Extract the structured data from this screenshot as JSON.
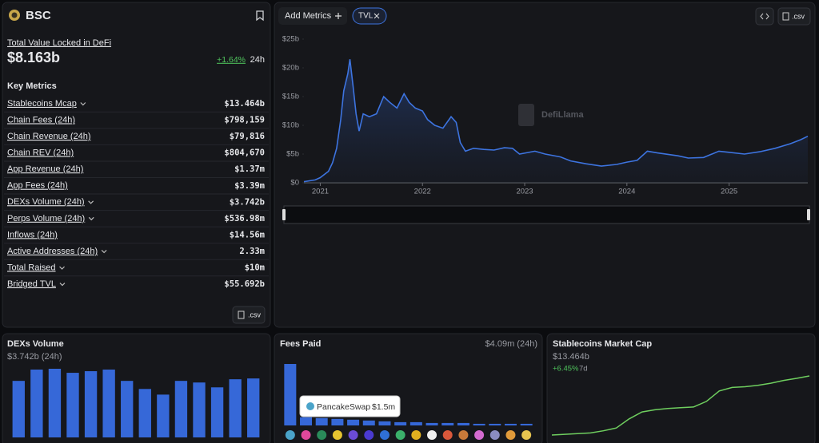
{
  "header": {
    "title": "BSC"
  },
  "tvl": {
    "label": "Total Value Locked in DeFi",
    "value": "$8.163b",
    "change": "+1.64%",
    "period": "24h"
  },
  "key_metrics": {
    "title": "Key Metrics",
    "csv": ".csv",
    "rows": [
      {
        "label": "Stablecoins Mcap",
        "value": "$13.464b",
        "dropdown": true
      },
      {
        "label": "Chain Fees (24h)",
        "value": "$798,159",
        "dropdown": false
      },
      {
        "label": "Chain Revenue (24h)",
        "value": "$79,816",
        "dropdown": false
      },
      {
        "label": "Chain REV (24h)",
        "value": "$804,670",
        "dropdown": false
      },
      {
        "label": "App Revenue (24h)",
        "value": "$1.37m",
        "dropdown": false
      },
      {
        "label": "App Fees (24h)",
        "value": "$3.39m",
        "dropdown": false
      },
      {
        "label": "DEXs Volume (24h)",
        "value": "$3.742b",
        "dropdown": true
      },
      {
        "label": "Perps Volume (24h)",
        "value": "$536.98m",
        "dropdown": true
      },
      {
        "label": "Inflows (24h)",
        "value": "$14.56m",
        "dropdown": false
      },
      {
        "label": "Active Addresses (24h)",
        "value": "2.33m",
        "dropdown": true
      },
      {
        "label": "Total Raised",
        "value": "$10m",
        "dropdown": true
      },
      {
        "label": "Bridged TVL",
        "value": "$55.692b",
        "dropdown": true
      }
    ]
  },
  "toolbar": {
    "add_metrics": "Add Metrics",
    "csv": ".csv"
  },
  "chart_data": [
    {
      "type": "area",
      "watermark": "DefiLlama",
      "x": [
        2020.84,
        2020.95,
        2021.0,
        2021.08,
        2021.12,
        2021.16,
        2021.2,
        2021.23,
        2021.27,
        2021.29,
        2021.32,
        2021.35,
        2021.38,
        2021.42,
        2021.48,
        2021.55,
        2021.62,
        2021.68,
        2021.75,
        2021.82,
        2021.87,
        2021.93,
        2022.0,
        2022.05,
        2022.12,
        2022.2,
        2022.28,
        2022.33,
        2022.37,
        2022.42,
        2022.5,
        2022.6,
        2022.7,
        2022.8,
        2022.88,
        2022.95,
        2023.1,
        2023.2,
        2023.35,
        2023.45,
        2023.6,
        2023.75,
        2023.9,
        2024.0,
        2024.1,
        2024.2,
        2024.3,
        2024.5,
        2024.6,
        2024.75,
        2024.9,
        2025.0,
        2025.15,
        2025.3,
        2025.45,
        2025.6,
        2025.7,
        2025.77
      ],
      "series": [
        {
          "name": "TVL",
          "color": "#3d74e0",
          "values": [
            0.2,
            0.5,
            0.9,
            2,
            3.5,
            6,
            11,
            16,
            19,
            21.5,
            17,
            12,
            9,
            12,
            11.5,
            12,
            15,
            14,
            13,
            15.5,
            14,
            13,
            12.5,
            11,
            10,
            9.5,
            11.5,
            10.5,
            7,
            5.5,
            6,
            5.8,
            5.7,
            6.1,
            6,
            5,
            5.5,
            5,
            4.5,
            3.8,
            3.3,
            2.9,
            3.2,
            3.6,
            3.9,
            5.5,
            5.2,
            4.7,
            4.3,
            4.4,
            5.5,
            5.3,
            5.0,
            5.4,
            6.0,
            6.8,
            7.5,
            8.1
          ]
        }
      ],
      "xlim": [
        2020.84,
        2025.77
      ],
      "ylim": [
        0,
        25
      ],
      "xticks": [
        2021,
        2022,
        2023,
        2024,
        2025
      ],
      "yticks": [
        {
          "value": 0,
          "label": "$0"
        },
        {
          "value": 5,
          "label": "$5b"
        },
        {
          "value": 10,
          "label": "$10b"
        },
        {
          "value": 15,
          "label": "$15b"
        },
        {
          "value": 20,
          "label": "$20b"
        },
        {
          "value": 25,
          "label": "$25b"
        }
      ]
    },
    {
      "type": "bar",
      "title": "DEXs Volume",
      "subtitle": "$3.742b (24h)",
      "color": "#3668d8",
      "values": [
        70,
        84,
        85,
        80,
        82,
        84,
        70,
        60,
        53,
        70,
        68,
        62,
        72,
        73
      ]
    },
    {
      "type": "bar",
      "title": "Fees Paid",
      "subtitle": "$4.09m (24h)",
      "color": "#3668d8",
      "values": [
        1.5,
        0.2,
        0.18,
        0.16,
        0.14,
        0.12,
        0.1,
        0.08,
        0.08,
        0.06,
        0.06,
        0.06,
        0.04,
        0.04,
        0.04,
        0.04
      ],
      "tooltip": {
        "category": "PancakeSwap",
        "value": "$1.5m"
      }
    },
    {
      "type": "line",
      "title": "Stablecoins Market Cap",
      "subtitle": "$13.464b",
      "change": "+6.45%",
      "period": "7d",
      "color": "#6fcf5f",
      "values": [
        12.62,
        12.63,
        12.64,
        12.65,
        12.68,
        12.72,
        12.85,
        12.95,
        12.98,
        13.0,
        13.01,
        13.02,
        13.1,
        13.25,
        13.3,
        13.31,
        13.33,
        13.36,
        13.4,
        13.43,
        13.464
      ]
    }
  ]
}
